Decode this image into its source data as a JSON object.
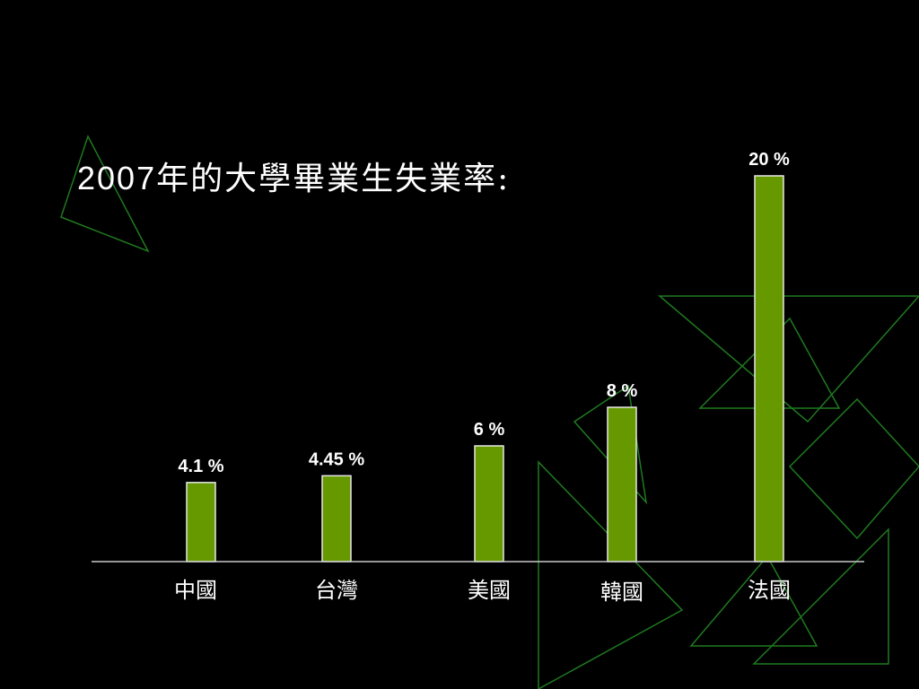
{
  "chart_data": {
    "type": "bar",
    "title_prefix": "2007",
    "title_text": "年的大學畢業生失業率:",
    "categories": [
      "中國",
      "台灣",
      "美國",
      "韓國",
      "法國"
    ],
    "values": [
      4.1,
      4.45,
      6,
      8,
      20
    ],
    "value_labels": [
      "4.1 %",
      "4.45 %",
      "6 %",
      "8 %",
      "20 %"
    ],
    "unit": "%",
    "ylim": [
      0,
      20.5
    ],
    "grid": false,
    "legend": "none",
    "colors": {
      "bar": "#669900",
      "bar_edge": "#e8e8e8",
      "axis": "#c8c8c8",
      "text": "#ffffff",
      "deco": "#1f7a1f"
    }
  }
}
